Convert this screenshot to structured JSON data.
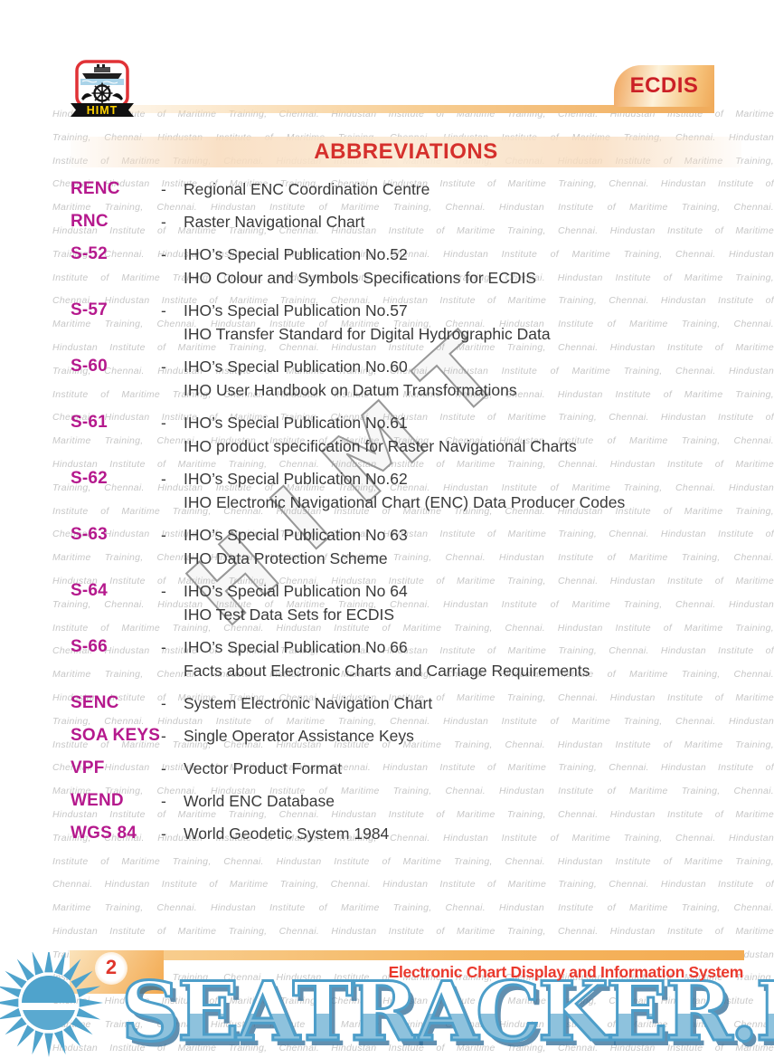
{
  "header": {
    "logo_text": "HIMT",
    "tab_label": "ECDIS",
    "page_heading": "ABBREVIATIONS"
  },
  "list": {
    "separator": "-",
    "entries": [
      {
        "term": "RENC",
        "definitions": [
          "Regional ENC Coordination Centre"
        ]
      },
      {
        "term": "RNC",
        "definitions": [
          "Raster Navigational Chart"
        ]
      },
      {
        "term": "S-52",
        "definitions": [
          "IHO’s Special Publication No.52",
          "IHO Colour and Symbols Specifications for ECDIS"
        ]
      },
      {
        "term": "S-57",
        "definitions": [
          "IHO’s Special Publication No.57",
          "IHO Transfer Standard for Digital Hydrographic Data"
        ]
      },
      {
        "term": "S-60",
        "definitions": [
          "IHO’s Special Publication No.60",
          "IHO User Handbook on Datum Transformations"
        ]
      },
      {
        "term": "S-61",
        "definitions": [
          "IHO’s Special Publication No.61",
          "IHO product specification for Raster Navigational Charts"
        ]
      },
      {
        "term": "S-62",
        "definitions": [
          "IHO’s Special Publication No.62",
          "IHO Electronic Navigational Chart (ENC) Data Producer Codes"
        ]
      },
      {
        "term": "S-63",
        "definitions": [
          "IHO’s Special Publication No 63",
          "IHO Data Protection Scheme"
        ]
      },
      {
        "term": "S-64",
        "definitions": [
          "IHO’s Special Publication No 64",
          "IHO Test Data Sets for ECDIS"
        ]
      },
      {
        "term": "S-66",
        "definitions": [
          "IHO’s Special Publication No 66",
          "Facts about Electronic Charts and Carriage Requirements"
        ]
      },
      {
        "term": "SENC",
        "definitions": [
          "System Electronic Navigation Chart"
        ]
      },
      {
        "term": "SOA KEYS",
        "definitions": [
          "Single Operator Assistance Keys"
        ]
      },
      {
        "term": "VPF",
        "definitions": [
          "Vector Product Format"
        ]
      },
      {
        "term": "WEND",
        "definitions": [
          "World ENC Database"
        ]
      },
      {
        "term": "WGS 84",
        "definitions": [
          "World Geodetic System 1984"
        ]
      }
    ]
  },
  "watermark": {
    "phrase": "Hindustan Institute of Maritime Training, Chennai.",
    "diagonal_text": "HIMT",
    "overlay_text": "SEATRACKER.RU"
  },
  "footer": {
    "page_number": "2",
    "book_title": "Electronic Chart Display and Information System"
  },
  "colors": {
    "term_magenta": "#b5198d",
    "heading_red": "#d5302c",
    "tab_red": "#cb2026",
    "footer_red": "#ea392d",
    "band_orange": "#f3b368",
    "overlay_blue": "#4d9ec9",
    "logo_border_red": "#e03236",
    "logo_banner_yellow": "#ffd200"
  }
}
